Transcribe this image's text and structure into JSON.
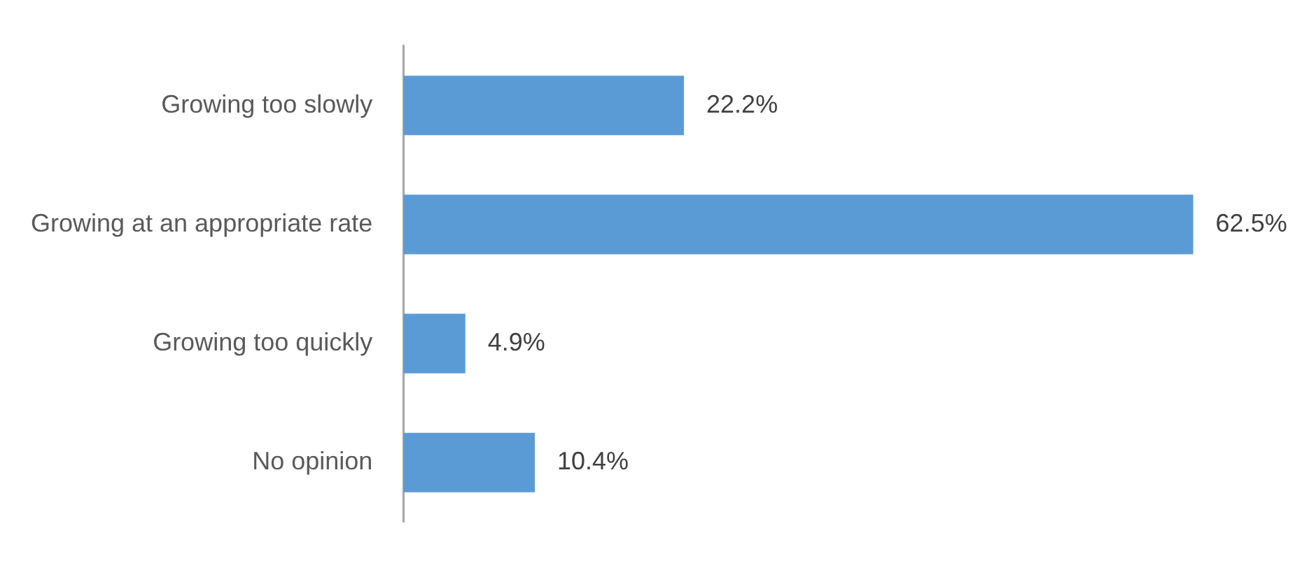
{
  "chart_data": {
    "type": "bar",
    "orientation": "horizontal",
    "categories": [
      "Growing too slowly",
      "Growing at an appropriate rate",
      "Growing too quickly",
      "No opinion"
    ],
    "values": [
      22.2,
      62.5,
      4.9,
      10.4
    ],
    "color": "#5b9bd5",
    "value_labels": [
      "22.2%",
      "62.5%",
      "4.9%",
      "10.4%"
    ]
  }
}
